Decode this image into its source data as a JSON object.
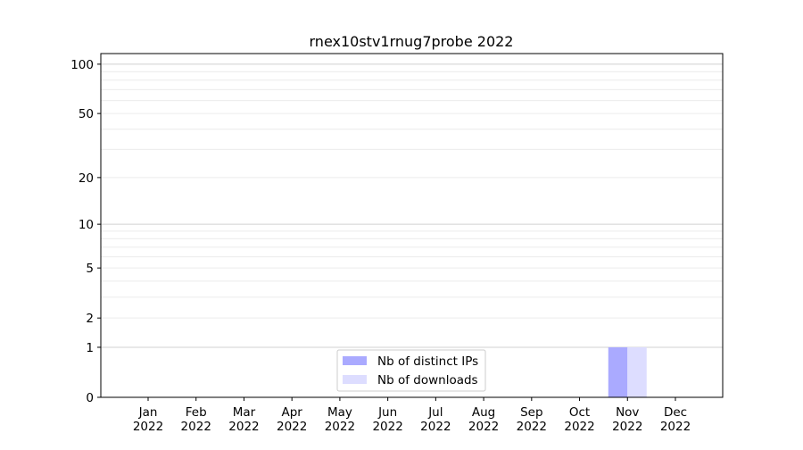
{
  "chart_data": {
    "type": "bar",
    "title": "rnex10stv1rnug7probe 2022",
    "xlabel": "",
    "ylabel": "",
    "yscale": "log(1+y)",
    "ylim": [
      0,
      116
    ],
    "yticks": [
      0,
      1,
      2,
      5,
      10,
      20,
      50,
      100
    ],
    "grid": true,
    "legend_position": "bottom-center",
    "categories": [
      "Jan\n2022",
      "Feb\n2022",
      "Mar\n2022",
      "Apr\n2022",
      "May\n2022",
      "Jun\n2022",
      "Jul\n2022",
      "Aug\n2022",
      "Sep\n2022",
      "Oct\n2022",
      "Nov\n2022",
      "Dec\n2022"
    ],
    "series": [
      {
        "name": "Nb of distinct IPs",
        "color": "#aaaaff",
        "values": [
          0,
          0,
          0,
          0,
          0,
          0,
          0,
          0,
          0,
          0,
          1,
          0
        ]
      },
      {
        "name": "Nb of downloads",
        "color": "#ddddff",
        "values": [
          0,
          0,
          0,
          0,
          0,
          0,
          0,
          0,
          0,
          0,
          1,
          0
        ]
      }
    ]
  }
}
